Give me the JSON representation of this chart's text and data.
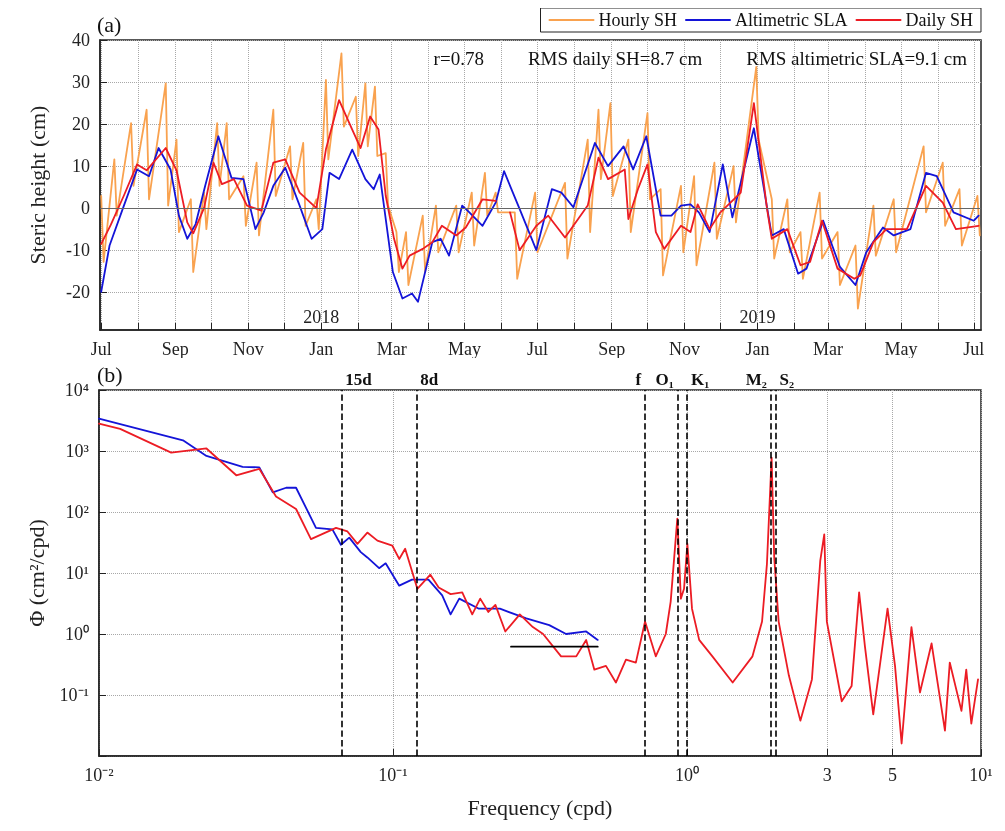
{
  "chart_data": [
    {
      "type": "line",
      "title": "(a)",
      "ylabel": "Steric height (cm)",
      "xlim": [
        "2017-06-30",
        "2019-07-07"
      ],
      "ylim": [
        -29,
        40
      ],
      "xticks": [
        {
          "value": "2017-07-01",
          "label": "Jul"
        },
        {
          "value": "2017-08-01",
          "label": null
        },
        {
          "value": "2017-09-01",
          "label": "Sep"
        },
        {
          "value": "2017-10-01",
          "label": null
        },
        {
          "value": "2017-11-01",
          "label": "Nov"
        },
        {
          "value": "2017-12-01",
          "label": null
        },
        {
          "value": "2018-01-01",
          "label": "Jan"
        },
        {
          "value": "2018-02-01",
          "label": null
        },
        {
          "value": "2018-03-01",
          "label": "Mar"
        },
        {
          "value": "2018-04-01",
          "label": null
        },
        {
          "value": "2018-05-01",
          "label": "May"
        },
        {
          "value": "2018-06-01",
          "label": null
        },
        {
          "value": "2018-07-01",
          "label": "Jul"
        },
        {
          "value": "2018-08-01",
          "label": null
        },
        {
          "value": "2018-09-01",
          "label": "Sep"
        },
        {
          "value": "2018-10-01",
          "label": null
        },
        {
          "value": "2018-11-01",
          "label": "Nov"
        },
        {
          "value": "2018-12-01",
          "label": null
        },
        {
          "value": "2019-01-01",
          "label": "Jan"
        },
        {
          "value": "2019-02-01",
          "label": null
        },
        {
          "value": "2019-03-01",
          "label": "Mar"
        },
        {
          "value": "2019-04-01",
          "label": null
        },
        {
          "value": "2019-05-01",
          "label": "May"
        },
        {
          "value": "2019-06-01",
          "label": null
        },
        {
          "value": "2019-07-01",
          "label": "Jul"
        }
      ],
      "yticks": [
        -20,
        -10,
        0,
        10,
        20,
        30,
        40
      ],
      "grid": true,
      "legend": "top right",
      "ref_lines": [
        {
          "axis": "y",
          "value": 0,
          "label": null,
          "color": "#666666",
          "line_style": "solid"
        }
      ],
      "annotations": [
        "r=0.78",
        "RMS daily SH=8.7 cm",
        "RMS altimetric SLA=9.1 cm"
      ],
      "x2lim": [
        "2017-06-30",
        "2019-07-07"
      ],
      "x2ticks": [
        {
          "value": "2018",
          "label": "2018"
        },
        {
          "value": "2019",
          "label": "2019"
        }
      ],
      "series": [
        {
          "name": "Hourly SH",
          "color": "#f9a24f",
          "x": [
            "2017-07-01",
            "2017-07-03",
            "2017-07-12",
            "2017-07-14",
            "2017-07-26",
            "2017-07-28",
            "2017-08-08",
            "2017-08-10",
            "2017-08-24",
            "2017-08-26",
            "2017-09-02",
            "2017-09-04",
            "2017-09-14",
            "2017-09-16",
            "2017-09-25",
            "2017-09-27",
            "2017-10-06",
            "2017-10-08",
            "2017-10-14",
            "2017-10-16",
            "2017-10-28",
            "2017-10-30",
            "2017-11-08",
            "2017-11-10",
            "2017-11-22",
            "2017-11-24",
            "2017-12-06",
            "2017-12-08",
            "2017-12-17",
            "2017-12-19",
            "2017-12-28",
            "2017-12-30",
            "2018-01-05",
            "2018-01-07",
            "2018-01-18",
            "2018-01-20",
            "2018-01-30",
            "2018-02-01",
            "2018-02-07",
            "2018-02-09",
            "2018-02-15",
            "2018-02-17",
            "2018-02-24",
            "2018-02-26",
            "2018-03-05",
            "2018-03-07",
            "2018-03-13",
            "2018-03-15",
            "2018-03-27",
            "2018-03-29",
            "2018-04-07",
            "2018-04-09",
            "2018-04-24",
            "2018-04-26",
            "2018-05-07",
            "2018-05-09",
            "2018-05-18",
            "2018-05-20",
            "2018-05-27",
            "2018-05-29",
            "2018-06-12",
            "2018-06-14",
            "2018-06-29",
            "2018-07-01",
            "2018-07-24",
            "2018-07-26",
            "2018-08-12",
            "2018-08-14",
            "2018-08-21",
            "2018-08-23",
            "2018-08-31",
            "2018-09-02",
            "2018-09-15",
            "2018-09-17",
            "2018-10-01",
            "2018-10-03",
            "2018-10-12",
            "2018-10-14",
            "2018-10-29",
            "2018-10-31",
            "2018-11-09",
            "2018-11-11",
            "2018-11-26",
            "2018-11-28",
            "2018-12-12",
            "2018-12-14",
            "2018-12-31",
            "2019-01-02",
            "2019-01-13",
            "2019-01-15",
            "2019-01-26",
            "2019-01-28",
            "2019-02-06",
            "2019-02-08",
            "2019-02-22",
            "2019-02-24",
            "2019-03-09",
            "2019-03-11",
            "2019-03-24",
            "2019-03-26",
            "2019-04-08",
            "2019-04-10",
            "2019-04-25",
            "2019-04-27",
            "2019-05-20",
            "2019-05-22",
            "2019-06-05",
            "2019-06-07",
            "2019-06-19",
            "2019-06-21",
            "2019-07-04",
            "2019-07-06"
          ],
          "values": [
            2.9,
            -12.8,
            11.6,
            -1.8,
            20.2,
            5.3,
            23.4,
            2.1,
            29.7,
            0.6,
            16.3,
            -5.7,
            2.1,
            -15.2,
            3.7,
            -5,
            20.2,
            5.3,
            20.2,
            2.1,
            7.6,
            -4.2,
            10.8,
            -6.5,
            23.4,
            2.9,
            14.7,
            2.1,
            15.5,
            -4.2,
            2.1,
            -5,
            30.5,
            11.6,
            36.8,
            19.4,
            26.5,
            12.4,
            29.7,
            14.7,
            28.9,
            12.4,
            13.1,
            0.6,
            -5.7,
            -15.2,
            -5.7,
            -18.3,
            -1.8,
            -15.2,
            0.6,
            -10.5,
            0.6,
            -10.5,
            3.7,
            -8.9,
            8.4,
            -1.8,
            3.7,
            -1,
            -1,
            -16.8,
            3.7,
            -10.5,
            6,
            -12,
            16.3,
            -5.7,
            23.4,
            6.9,
            25,
            2.9,
            16.3,
            -5.7,
            22.6,
            2.1,
            4.5,
            -16,
            5.3,
            -10.5,
            7.6,
            -13.6,
            10.8,
            -7.3,
            10,
            -3.4,
            33.6,
            16.3,
            2.1,
            -12,
            2.1,
            -10.5,
            -5.7,
            -16.8,
            3.7,
            -12,
            -5.7,
            -18.3,
            -8.9,
            -23.9,
            0.6,
            -11.3,
            2.1,
            -10.5,
            14.7,
            -1,
            10.8,
            -4.2,
            4.5,
            -8.9,
            2.9,
            -6.5
          ]
        },
        {
          "name": "Altimetric SLA",
          "color": "#1414d8",
          "x": [
            "2017-07-01",
            "2017-07-08",
            "2017-07-20",
            "2017-07-31",
            "2017-08-10",
            "2017-08-18",
            "2017-08-28",
            "2017-09-04",
            "2017-09-11",
            "2017-09-18",
            "2017-09-26",
            "2017-10-07",
            "2017-10-18",
            "2017-10-28",
            "2017-11-07",
            "2017-11-14",
            "2017-11-22",
            "2017-12-02",
            "2017-12-14",
            "2017-12-24",
            "2018-01-02",
            "2018-01-08",
            "2018-01-16",
            "2018-01-27",
            "2018-02-07",
            "2018-02-14",
            "2018-02-19",
            "2018-03-02",
            "2018-03-10",
            "2018-03-18",
            "2018-03-23",
            "2018-04-04",
            "2018-04-11",
            "2018-04-18",
            "2018-04-29",
            "2018-05-05",
            "2018-05-16",
            "2018-05-27",
            "2018-06-03",
            "2018-06-16",
            "2018-06-30",
            "2018-07-13",
            "2018-07-21",
            "2018-07-31",
            "2018-08-18",
            "2018-08-29",
            "2018-09-11",
            "2018-09-19",
            "2018-09-30",
            "2018-10-12",
            "2018-10-21",
            "2018-10-29",
            "2018-11-06",
            "2018-11-13",
            "2018-11-22",
            "2018-12-03",
            "2018-12-11",
            "2018-12-29",
            "2019-01-09",
            "2019-01-13",
            "2019-01-23",
            "2019-02-04",
            "2019-02-11",
            "2019-02-25",
            "2019-03-11",
            "2019-03-24",
            "2019-04-02",
            "2019-04-16",
            "2019-04-25",
            "2019-05-09",
            "2019-05-22",
            "2019-05-31",
            "2019-06-14",
            "2019-07-01",
            "2019-07-05"
          ],
          "values": [
            -19.9,
            -8.9,
            0.6,
            9.2,
            7.6,
            14.3,
            9.2,
            -1.8,
            -7.3,
            -3.8,
            5.3,
            17.1,
            7.2,
            6.9,
            -5,
            -1,
            5.3,
            9.6,
            0.6,
            -7.3,
            -5,
            8.4,
            6.9,
            13.9,
            6.9,
            4.5,
            8,
            -15.2,
            -21.5,
            -20.3,
            -22.3,
            -8.1,
            -7.3,
            -11.3,
            0.6,
            -1,
            -4.2,
            1.3,
            8.8,
            -0.2,
            -10,
            4.5,
            3.7,
            0.2,
            15.5,
            10,
            14.7,
            9.2,
            17.1,
            -1.8,
            -1.8,
            0.6,
            0.9,
            -1,
            -5.7,
            10.4,
            -2.2,
            19,
            0.2,
            -6.5,
            -5,
            -15.6,
            -14.4,
            -3,
            -14,
            -18.3,
            -10.5,
            -4.6,
            -6.5,
            -5,
            8.4,
            7.6,
            -1,
            -3,
            -1.8
          ]
        },
        {
          "name": "Daily SH",
          "color": "#ec1c24",
          "x": [
            "2017-07-01",
            "2017-07-09",
            "2017-07-20",
            "2017-07-31",
            "2017-08-08",
            "2017-08-24",
            "2017-09-02",
            "2017-09-11",
            "2017-09-16",
            "2017-09-25",
            "2017-10-03",
            "2017-10-10",
            "2017-10-20",
            "2017-10-31",
            "2017-11-12",
            "2017-11-22",
            "2017-12-02",
            "2017-12-14",
            "2017-12-28",
            "2018-01-05",
            "2018-01-16",
            "2018-01-27",
            "2018-02-03",
            "2018-02-11",
            "2018-02-18",
            "2018-02-24",
            "2018-03-03",
            "2018-03-10",
            "2018-03-16",
            "2018-03-27",
            "2018-04-04",
            "2018-04-12",
            "2018-04-24",
            "2018-05-02",
            "2018-05-16",
            "2018-05-27",
            "2018-06-01",
            "2018-06-08",
            "2018-06-16",
            "2018-06-30",
            "2018-07-10",
            "2018-07-24",
            "2018-08-12",
            "2018-08-21",
            "2018-08-29",
            "2018-09-12",
            "2018-09-15",
            "2018-09-23",
            "2018-10-01",
            "2018-10-08",
            "2018-10-15",
            "2018-10-29",
            "2018-11-06",
            "2018-11-12",
            "2018-11-22",
            "2018-12-01",
            "2018-12-18",
            "2018-12-29",
            "2019-01-09",
            "2019-01-13",
            "2019-01-26",
            "2019-02-06",
            "2019-02-14",
            "2019-02-24",
            "2019-03-09",
            "2019-03-23",
            "2019-03-28",
            "2019-04-08",
            "2019-04-19",
            "2019-05-06",
            "2019-05-22",
            "2019-06-05",
            "2019-06-16",
            "2019-07-05"
          ],
          "values": [
            -8.5,
            -4,
            3,
            10.4,
            9,
            14.3,
            9,
            -3.4,
            -6,
            0,
            10.8,
            5.7,
            6.9,
            0.6,
            -0.6,
            10.8,
            11.6,
            3.7,
            0,
            14,
            25.7,
            18.7,
            14.3,
            21.8,
            18.7,
            3,
            -7.3,
            -14.4,
            -11.3,
            -9.7,
            -8.1,
            -4.2,
            -6.5,
            -4.6,
            2.1,
            1.7,
            null,
            -1,
            -10,
            -4.2,
            -1.8,
            -7,
            0.6,
            12,
            6.9,
            9.2,
            -2.6,
            4.5,
            10.4,
            -5.7,
            -9.7,
            -4.2,
            -5.7,
            0.9,
            -5,
            -1,
            3.7,
            25,
            -0.2,
            -7.3,
            -5,
            -13.6,
            -12.8,
            -3,
            -14.4,
            -16.8,
            -16,
            -8.1,
            -5,
            -5,
            5.3,
            1.3,
            -5,
            -4.2
          ]
        }
      ]
    },
    {
      "type": "line",
      "title": "(b)",
      "xlabel": "Frequency (cpd)",
      "ylabel": "Φ (cm²/cpd)",
      "log": "xy",
      "xlim": [
        0.01,
        10
      ],
      "ylim": [
        0.01,
        10000
      ],
      "xticks": [
        {
          "value": 0.01,
          "label": "10⁻²"
        },
        {
          "value": 0.1,
          "label": "10⁻¹"
        },
        {
          "value": 1,
          "label": "10⁰"
        },
        3,
        5,
        {
          "value": 10,
          "label": "10¹"
        }
      ],
      "yticks": [
        {
          "value": 0.01,
          "label": null
        },
        {
          "value": 0.1,
          "label": "10⁻¹"
        },
        {
          "value": 1,
          "label": "10⁰"
        },
        {
          "value": 10,
          "label": "10¹"
        },
        {
          "value": 100,
          "label": "10²"
        },
        {
          "value": 1000,
          "label": "10³"
        },
        {
          "value": 10000,
          "label": "10⁴"
        }
      ],
      "grid": true,
      "ref_lines": [
        {
          "axis": "x",
          "value": 0.0667,
          "label": "15d",
          "color": "#000000",
          "line_style": "dashed"
        },
        {
          "axis": "x",
          "value": 0.12,
          "label": "8d",
          "color": "#000000",
          "line_style": "dashed"
        },
        {
          "axis": "x",
          "value": 0.72,
          "label": "f",
          "color": "#000000",
          "line_style": "dashed"
        },
        {
          "axis": "x",
          "value": 0.93,
          "label": "O₁",
          "color": "#000000",
          "line_style": "dashed"
        },
        {
          "axis": "x",
          "value": 1.0,
          "label": "K₁",
          "color": "#000000",
          "line_style": "dashed"
        },
        {
          "axis": "x",
          "value": 1.93,
          "label": "M₂",
          "color": "#000000",
          "line_style": "dashed"
        },
        {
          "axis": "x",
          "value": 2.0,
          "label": "S₂",
          "color": "#000000",
          "line_style": "dashed"
        }
      ],
      "series": [
        {
          "color": "#1414d8",
          "x": [
            0.01,
            0.0193,
            0.0232,
            0.0308,
            0.0351,
            0.039,
            0.0433,
            0.0468,
            0.0547,
            0.0622,
            0.0665,
            0.071,
            0.0777,
            0.0818,
            0.0897,
            0.0944,
            0.105,
            0.116,
            0.132,
            0.147,
            0.157,
            0.168,
            0.196,
            0.231,
            0.284,
            0.34,
            0.388,
            0.454,
            0.497
          ],
          "values": [
            3400,
            1500,
            830,
            550,
            540,
            210,
            250,
            250,
            55,
            52,
            29,
            38,
            22,
            18,
            12,
            14.4,
            6.2,
            7.8,
            7.8,
            4.3,
            2.1,
            3.8,
            2.6,
            2.6,
            1.8,
            1.4,
            1,
            1.1,
            0.8
          ]
        },
        {
          "color": "#ec1c24",
          "x": [
            0.01,
            0.0118,
            0.0176,
            0.0232,
            0.0293,
            0.0351,
            0.04,
            0.0468,
            0.0526,
            0.064,
            0.07,
            0.0757,
            0.0818,
            0.0885,
            0.0995,
            0.105,
            0.11,
            0.121,
            0.134,
            0.143,
            0.157,
            0.172,
            0.186,
            0.198,
            0.211,
            0.223,
            0.241,
            0.27,
            0.299,
            0.324,
            0.373,
            0.42,
            0.454,
            0.484,
            0.53,
            0.573,
            0.62,
            0.67,
            0.72,
            0.783,
            0.847,
            0.88,
            0.927,
            0.953,
            0.977,
            1.003,
            1.04,
            1.1,
            1.22,
            1.43,
            1.67,
            1.8,
            1.87,
            1.94,
            1.98,
            2.05,
            2.22,
            2.43,
            2.66,
            2.84,
            2.93,
            2.99,
            3.36,
            3.63,
            3.85,
            4.03,
            4.3,
            4.81,
            5.1,
            5.37,
            5.8,
            6.2,
            6.79,
            7.54,
            7.83,
            8.58,
            8.91,
            9.27,
            9.77
          ],
          "values": [
            2800,
            2300,
            940,
            1100,
            400,
            510,
            180,
            112,
            36,
            55,
            48,
            30,
            46,
            34,
            28,
            17,
            25,
            5.5,
            9.4,
            5.8,
            4.5,
            4.8,
            2.1,
            3.8,
            2.3,
            3,
            1.1,
            2.1,
            1.3,
            1,
            0.43,
            0.43,
            0.8,
            0.26,
            0.3,
            0.16,
            0.38,
            0.34,
            1.6,
            0.43,
            1,
            3.4,
            78,
            3.8,
            5.5,
            30,
            2.6,
            0.8,
            0.43,
            0.16,
            0.43,
            1.6,
            14,
            780,
            18,
            1.6,
            0.21,
            0.038,
            0.18,
            16,
            43,
            1.6,
            0.079,
            0.14,
            4.8,
            0.62,
            0.048,
            2.6,
            0.3,
            0.016,
            1.3,
            0.11,
            0.7,
            0.026,
            0.34,
            0.055,
            0.26,
            0.034,
            0.18
          ]
        },
        {
          "color": "#000000",
          "x": [
            0.252,
            0.497
          ],
          "values": [
            0.62,
            0.62
          ]
        }
      ]
    }
  ]
}
